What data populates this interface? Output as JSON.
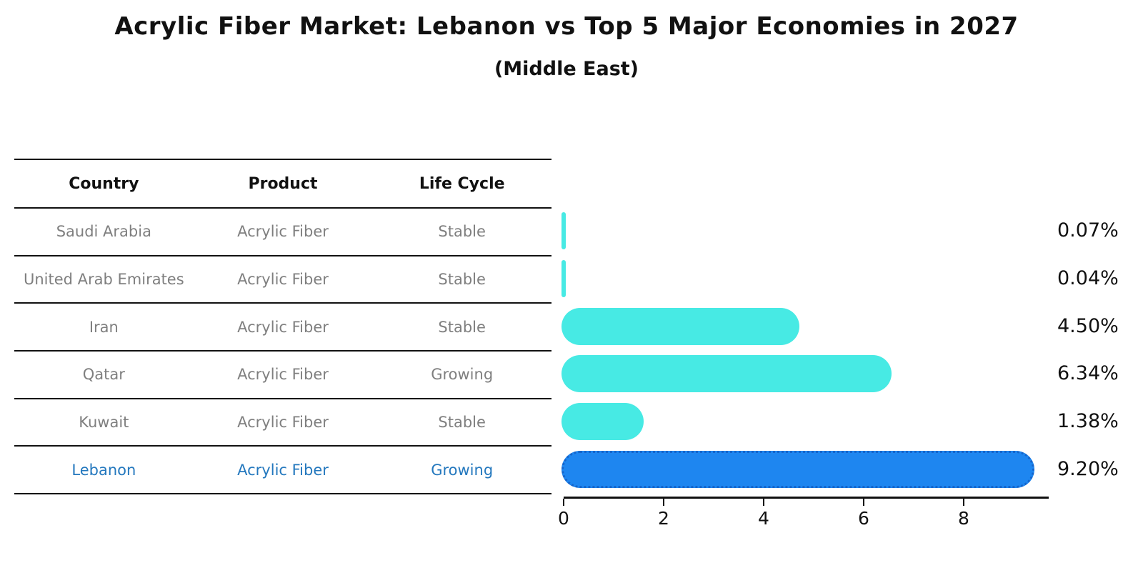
{
  "title": "Acrylic Fiber Market: Lebanon vs Top 5 Major Economies in 2027",
  "subtitle": "(Middle East)",
  "table": {
    "headers": [
      "Country",
      "Product",
      "Life Cycle"
    ],
    "rows": [
      {
        "country": "Saudi Arabia",
        "product": "Acrylic Fiber",
        "life_cycle": "Stable",
        "highlight": false
      },
      {
        "country": "United Arab Emirates",
        "product": "Acrylic Fiber",
        "life_cycle": "Stable",
        "highlight": false
      },
      {
        "country": "Iran",
        "product": "Acrylic Fiber",
        "life_cycle": "Stable",
        "highlight": false
      },
      {
        "country": "Qatar",
        "product": "Acrylic Fiber",
        "life_cycle": "Growing",
        "highlight": false
      },
      {
        "country": "Kuwait",
        "product": "Acrylic Fiber",
        "life_cycle": "Stable",
        "highlight": false
      },
      {
        "country": "Lebanon",
        "product": "Acrylic Fiber",
        "life_cycle": "Growing",
        "highlight": true
      }
    ]
  },
  "chart_data": {
    "type": "bar",
    "orientation": "horizontal",
    "title": "Acrylic Fiber Market: Lebanon vs Top 5 Major Economies in 2027",
    "subtitle": "(Middle East)",
    "categories": [
      "Saudi Arabia",
      "United Arab Emirates",
      "Iran",
      "Qatar",
      "Kuwait",
      "Lebanon"
    ],
    "values": [
      0.07,
      0.04,
      4.5,
      6.34,
      1.38,
      9.2
    ],
    "labels": [
      "0.07%",
      "0.04%",
      "4.50%",
      "6.34%",
      "1.38%",
      "9.20%"
    ],
    "xticks": [
      "0",
      "2",
      "4",
      "6",
      "8"
    ],
    "xtick_values": [
      0,
      2,
      4,
      6,
      8
    ],
    "xlim": [
      0,
      9.67
    ],
    "grid": false,
    "legend": false,
    "bar_color": "#47EAE4",
    "highlight_bar_color": "#1E86F0",
    "highlight_border_color": "#1565CB",
    "highlight_index": 5,
    "highlight_text_color": "#2478BE"
  },
  "colors": {
    "background": "#FFFFFF",
    "text": "#111111",
    "muted_text": "#7F7F7F",
    "line": "#111111"
  }
}
